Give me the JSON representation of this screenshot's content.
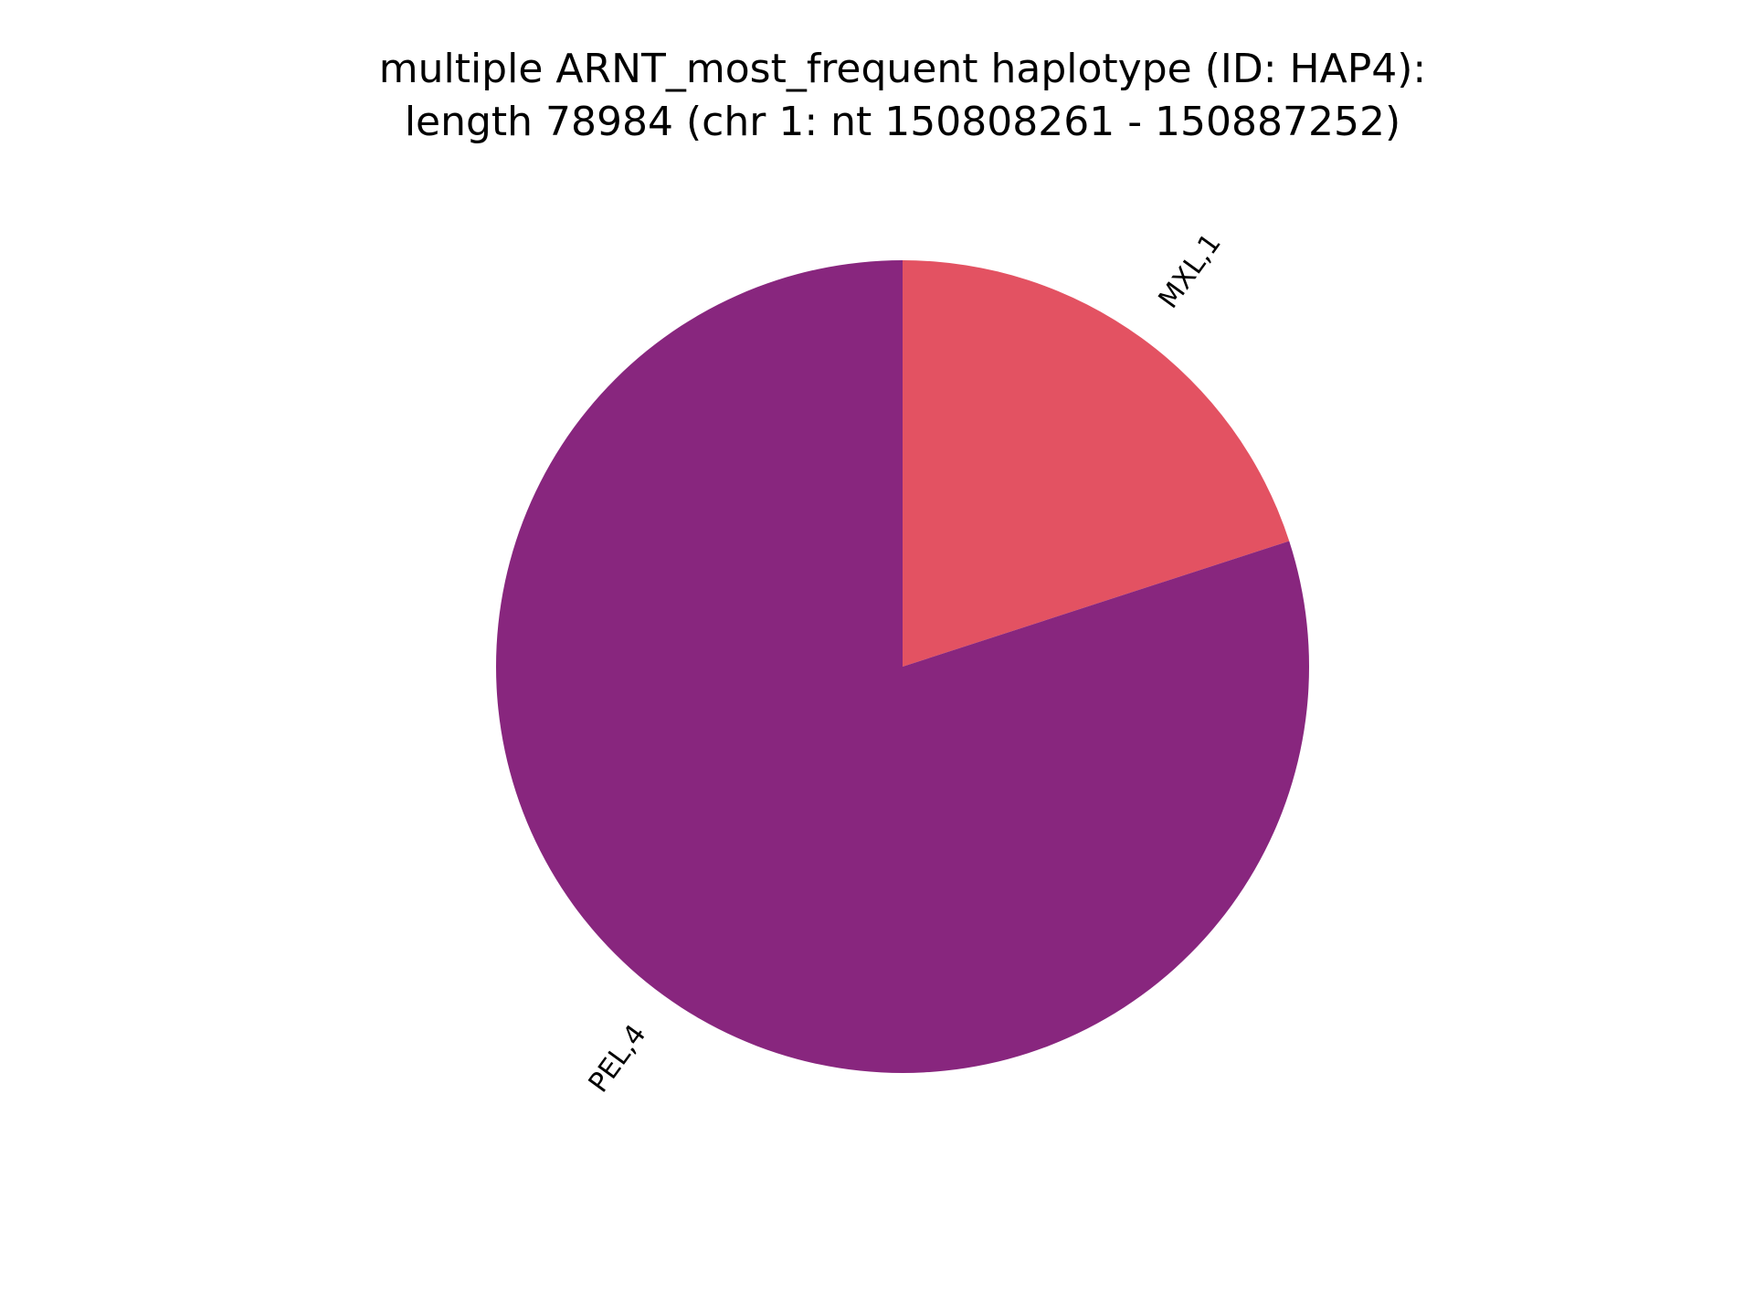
{
  "chart_data": {
    "type": "pie",
    "title": [
      "multiple ARNT_most_frequent haplotype (ID: HAP4):",
      "length 78984 (chr 1: nt 150808261 - 150887252)"
    ],
    "slices": [
      {
        "label": "MXL,1",
        "value": 1,
        "color": "#e35262"
      },
      {
        "label": "PEL,4",
        "value": 4,
        "color": "#88267e"
      }
    ],
    "start_angle_deg": 90,
    "direction": "clockwise",
    "legend": "none"
  }
}
